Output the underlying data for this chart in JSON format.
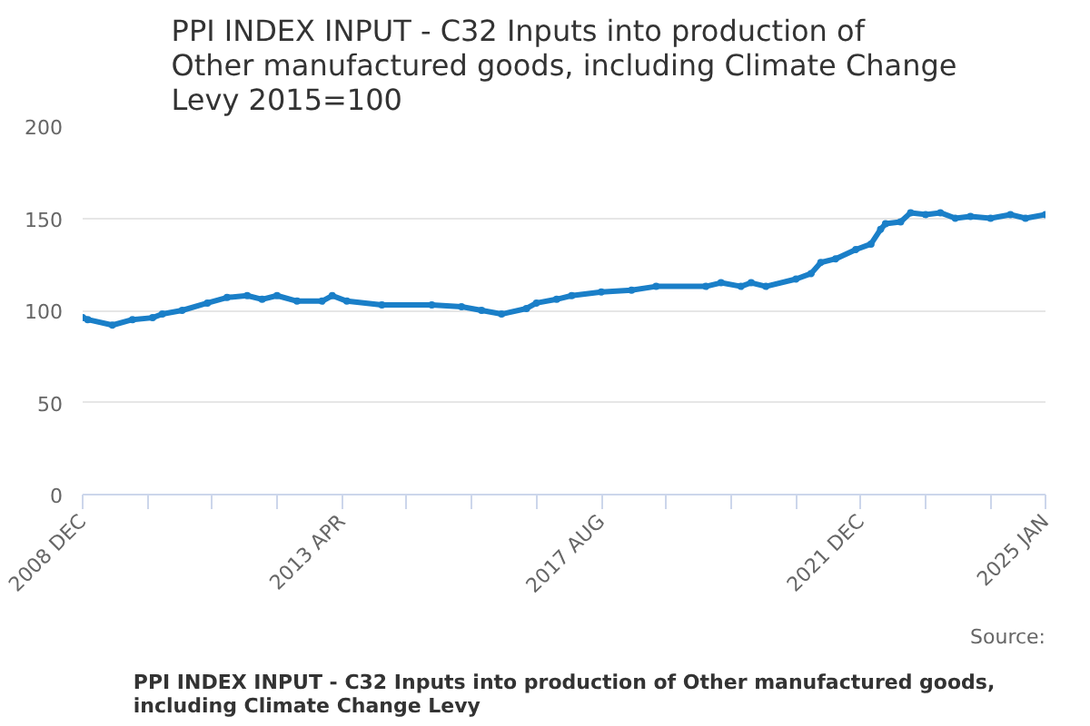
{
  "chart_data": {
    "type": "line",
    "title": "PPI INDEX INPUT - C32 Inputs into production of Other manufactured goods, including Climate Change Levy 2015=100",
    "annotations": [
      "PPI INDEX INPUT - C32 Inputs into production of Other manufactured goods, including Climate Change Levy",
      "Source:"
    ],
    "x": [
      "2008-12",
      "2009-01",
      "2009-06",
      "2009-10",
      "2010-02",
      "2010-04",
      "2010-08",
      "2011-01",
      "2011-05",
      "2011-09",
      "2011-12",
      "2012-03",
      "2012-07",
      "2012-12",
      "2013-02",
      "2013-05",
      "2013-12",
      "2014-10",
      "2015-04",
      "2015-08",
      "2015-12",
      "2016-05",
      "2016-07",
      "2016-11",
      "2017-02",
      "2017-08",
      "2018-02",
      "2018-07",
      "2019-05",
      "2019-08",
      "2019-12",
      "2020-02",
      "2020-05",
      "2020-11",
      "2021-02",
      "2021-04",
      "2021-07",
      "2021-11",
      "2022-02",
      "2022-04",
      "2022-05",
      "2022-08",
      "2022-10",
      "2023-01",
      "2023-04",
      "2023-07",
      "2023-10",
      "2024-02",
      "2024-06",
      "2024-09",
      "2025-01"
    ],
    "series": [
      {
        "color": "#1a7fc8",
        "values": [
          96,
          95,
          92,
          95,
          96,
          98,
          100,
          104,
          107,
          108,
          106,
          108,
          105,
          105,
          108,
          105,
          103,
          103,
          102,
          100,
          98,
          101,
          104,
          106,
          108,
          110,
          111,
          113,
          113,
          115,
          113,
          115,
          113,
          117,
          120,
          126,
          128,
          133,
          136,
          144,
          147,
          148,
          153,
          152,
          153,
          150,
          151,
          150,
          152,
          150,
          152
        ]
      }
    ],
    "xlim": [
      "2008-12",
      "2025-01"
    ],
    "xticks": [
      {
        "value": "2008-12",
        "label": "2008 DEC"
      },
      {
        "value": "2010-01",
        "label": null
      },
      {
        "value": "2011-02",
        "label": null
      },
      {
        "value": "2012-03",
        "label": null
      },
      {
        "value": "2013-04",
        "label": "2013 APR"
      },
      {
        "value": "2014-05",
        "label": null
      },
      {
        "value": "2015-06",
        "label": null
      },
      {
        "value": "2016-07",
        "label": null
      },
      {
        "value": "2017-08",
        "label": "2017 AUG"
      },
      {
        "value": "2018-09",
        "label": null
      },
      {
        "value": "2019-10",
        "label": null
      },
      {
        "value": "2020-11",
        "label": null
      },
      {
        "value": "2021-12",
        "label": "2021 DEC"
      },
      {
        "value": "2023-01",
        "label": null
      },
      {
        "value": "2024-02",
        "label": null
      },
      {
        "value": "2025-01",
        "label": "2025 JAN"
      }
    ],
    "ylim": [
      0,
      200
    ],
    "yticks": [
      0,
      50,
      100,
      150,
      200
    ],
    "grid": "y",
    "marker": "circle",
    "line_style": "solid"
  }
}
